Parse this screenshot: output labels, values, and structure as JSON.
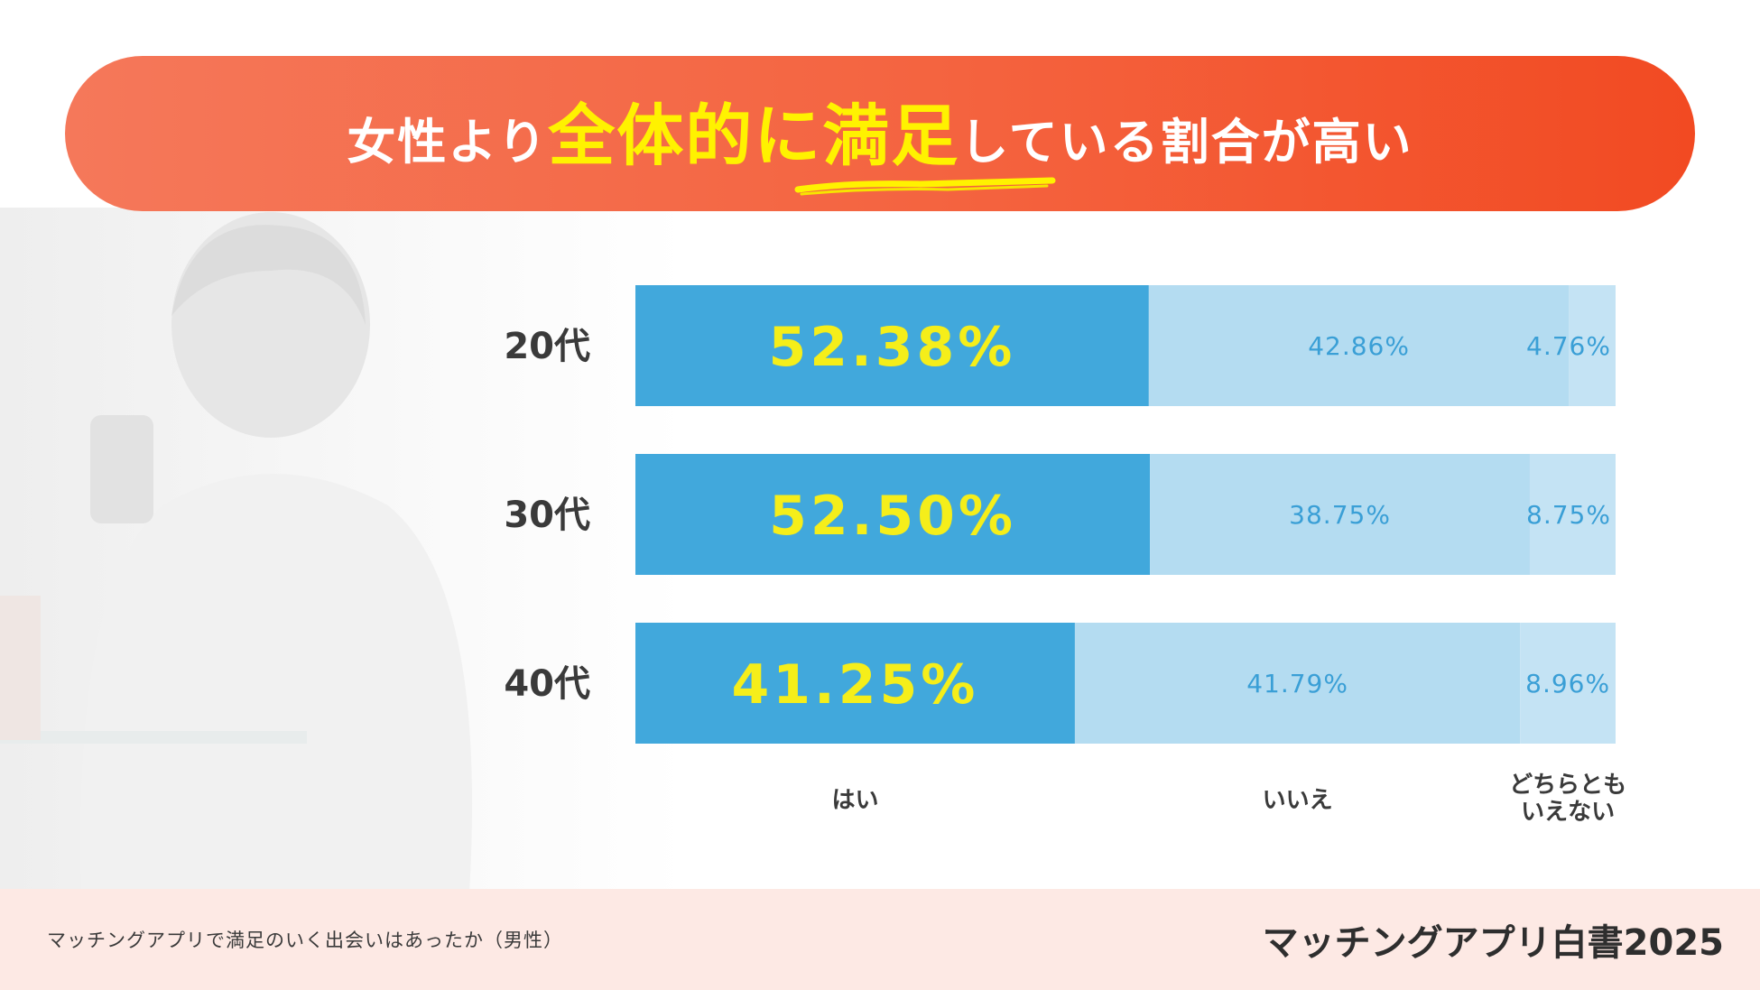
{
  "title": {
    "prefix": "女性より",
    "highlight": "全体的に満足",
    "suffix": "している割合が高い"
  },
  "chart_data": {
    "type": "bar",
    "orientation": "horizontal",
    "stacked": true,
    "normalized_percent": true,
    "categories": [
      "20代",
      "30代",
      "40代"
    ],
    "series": [
      {
        "name": "はい",
        "values": [
          52.38,
          52.5,
          41.25
        ],
        "labels": [
          "52.38%",
          "52.50%",
          "41.25%"
        ],
        "color": "#41a8dc"
      },
      {
        "name": "いいえ",
        "values": [
          42.86,
          38.75,
          41.79
        ],
        "labels": [
          "42.86%",
          "38.75%",
          "41.79%"
        ],
        "color": "#b4dcf1"
      },
      {
        "name": "どちらともいえない",
        "values": [
          4.76,
          8.75,
          8.96
        ],
        "labels": [
          "4.76%",
          "8.75%",
          "8.96%"
        ],
        "color": "#c4e3f4"
      }
    ],
    "legend": [
      {
        "line1": "はい",
        "line2": ""
      },
      {
        "line1": "いいえ",
        "line2": ""
      },
      {
        "line1": "どちらとも",
        "line2": "いえない"
      }
    ],
    "xlim": [
      0,
      100
    ]
  },
  "footer": {
    "caption": "マッチングアプリで満足のいく出会いはあったか（男性）",
    "logo": "マッチングアプリ白書2025"
  },
  "colors": {
    "banner_start": "#f5785a",
    "banner_end": "#f24a22",
    "highlight": "#fff200",
    "yes_bar": "#41a8dc",
    "no_bar": "#b4dcf1",
    "neutral_bar": "#c4e3f4",
    "footer_bg": "#fde9e4"
  }
}
